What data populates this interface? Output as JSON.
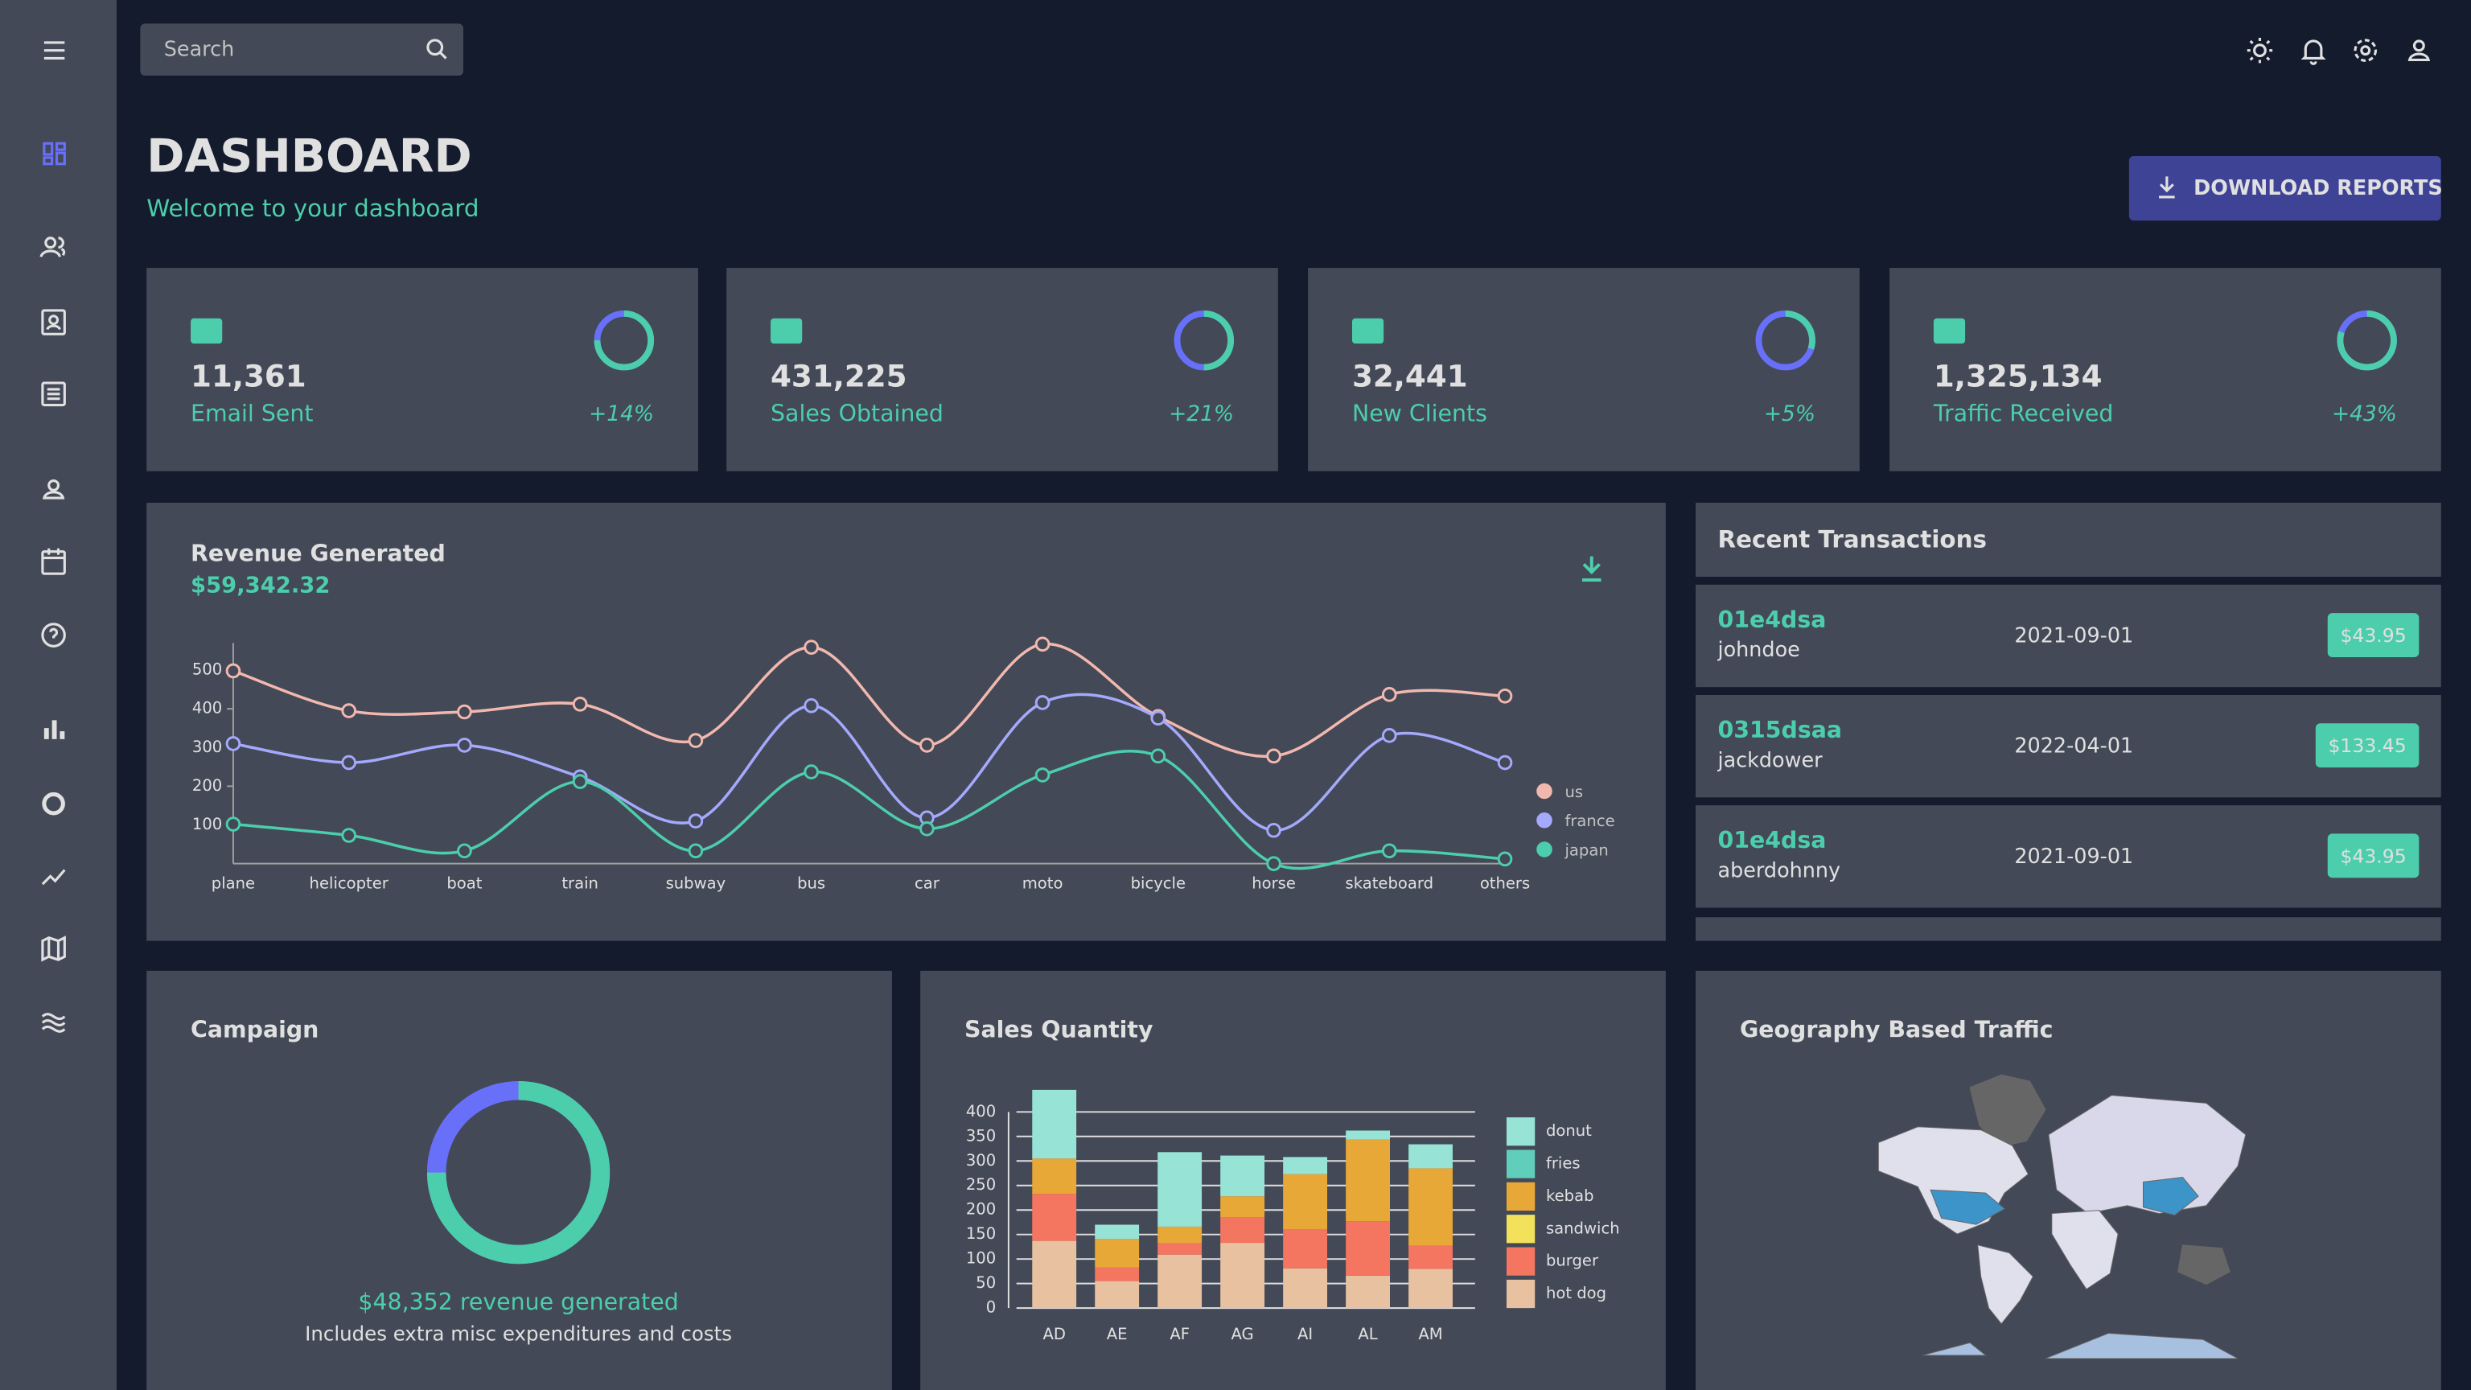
{
  "search_placeholder": "Search",
  "header": {
    "title": "DASHBOARD",
    "subtitle": "Welcome to your dashboard",
    "button": "DOWNLOAD REPORTS"
  },
  "stats": [
    {
      "value": "11,361",
      "label": "Email Sent",
      "increase": "+14%",
      "progress": 0.75
    },
    {
      "value": "431,225",
      "label": "Sales Obtained",
      "increase": "+21%",
      "progress": 0.5
    },
    {
      "value": "32,441",
      "label": "New Clients",
      "increase": "+5%",
      "progress": 0.3
    },
    {
      "value": "1,325,134",
      "label": "Traffic Received",
      "increase": "+43%",
      "progress": 0.8
    }
  ],
  "revenue": {
    "title": "Revenue Generated",
    "amount": "$59,342.32"
  },
  "transactions": {
    "title": "Recent Transactions",
    "rows": [
      {
        "id": "01e4dsa",
        "user": "johndoe",
        "date": "2021-09-01",
        "cost": "$43.95"
      },
      {
        "id": "0315dsaa",
        "user": "jackdower",
        "date": "2022-04-01",
        "cost": "$133.45"
      },
      {
        "id": "01e4dsa",
        "user": "aberdohnny",
        "date": "2021-09-01",
        "cost": "$43.95"
      }
    ]
  },
  "campaign": {
    "title": "Campaign",
    "progress": 0.75,
    "revenue": "$48,352 revenue generated",
    "note": "Includes extra misc expenditures and costs"
  },
  "geography": {
    "title": "Geography Based Traffic"
  },
  "chart_data": [
    {
      "type": "line",
      "categories": [
        "plane",
        "helicopter",
        "boat",
        "train",
        "subway",
        "bus",
        "car",
        "moto",
        "bicycle",
        "horse",
        "skateboard",
        "others"
      ],
      "series": [
        {
          "name": "us",
          "color": "#f2b8ae",
          "values": [
            498,
            395,
            392,
            412,
            318,
            559,
            306,
            567,
            380,
            278,
            437,
            433
          ]
        },
        {
          "name": "france",
          "color": "#a4a9fc",
          "values": [
            310,
            261,
            306,
            224,
            110,
            408,
            118,
            416,
            376,
            86,
            331,
            261
          ]
        },
        {
          "name": "japan",
          "color": "#4cceac",
          "values": [
            102,
            73,
            33,
            212,
            33,
            237,
            90,
            229,
            278,
            0,
            33,
            12
          ]
        }
      ],
      "ylim": [
        0,
        570
      ],
      "yticks": [
        100,
        200,
        300,
        400,
        500
      ]
    },
    {
      "type": "bar",
      "stacked": true,
      "title": "Sales Quantity",
      "categories": [
        "AD",
        "AE",
        "AF",
        "AG",
        "AI",
        "AL",
        "AM"
      ],
      "series": [
        {
          "name": "hot dog",
          "color": "#e8c1a0",
          "values": [
            137,
            55,
            109,
            133,
            81,
            66,
            80
          ]
        },
        {
          "name": "burger",
          "color": "#f47560",
          "values": [
            96,
            28,
            23,
            52,
            80,
            111,
            47
          ]
        },
        {
          "name": "sandwich",
          "color": "#f1e15b",
          "values": [
            null,
            null,
            null,
            null,
            null,
            null,
            null
          ]
        },
        {
          "name": "kebab",
          "color": "#e8a838",
          "values": [
            72,
            58,
            34,
            43,
            112,
            167,
            158
          ]
        },
        {
          "name": "fries",
          "color": "#61cdbb",
          "values": [
            null,
            null,
            null,
            null,
            null,
            null,
            null
          ]
        },
        {
          "name": "donut",
          "color": "#97e3d5",
          "values": [
            140,
            29,
            152,
            83,
            35,
            18,
            49
          ]
        }
      ],
      "ylim": [
        0,
        450
      ],
      "yticks": [
        0,
        50,
        100,
        150,
        200,
        250,
        300,
        350,
        400
      ]
    }
  ]
}
